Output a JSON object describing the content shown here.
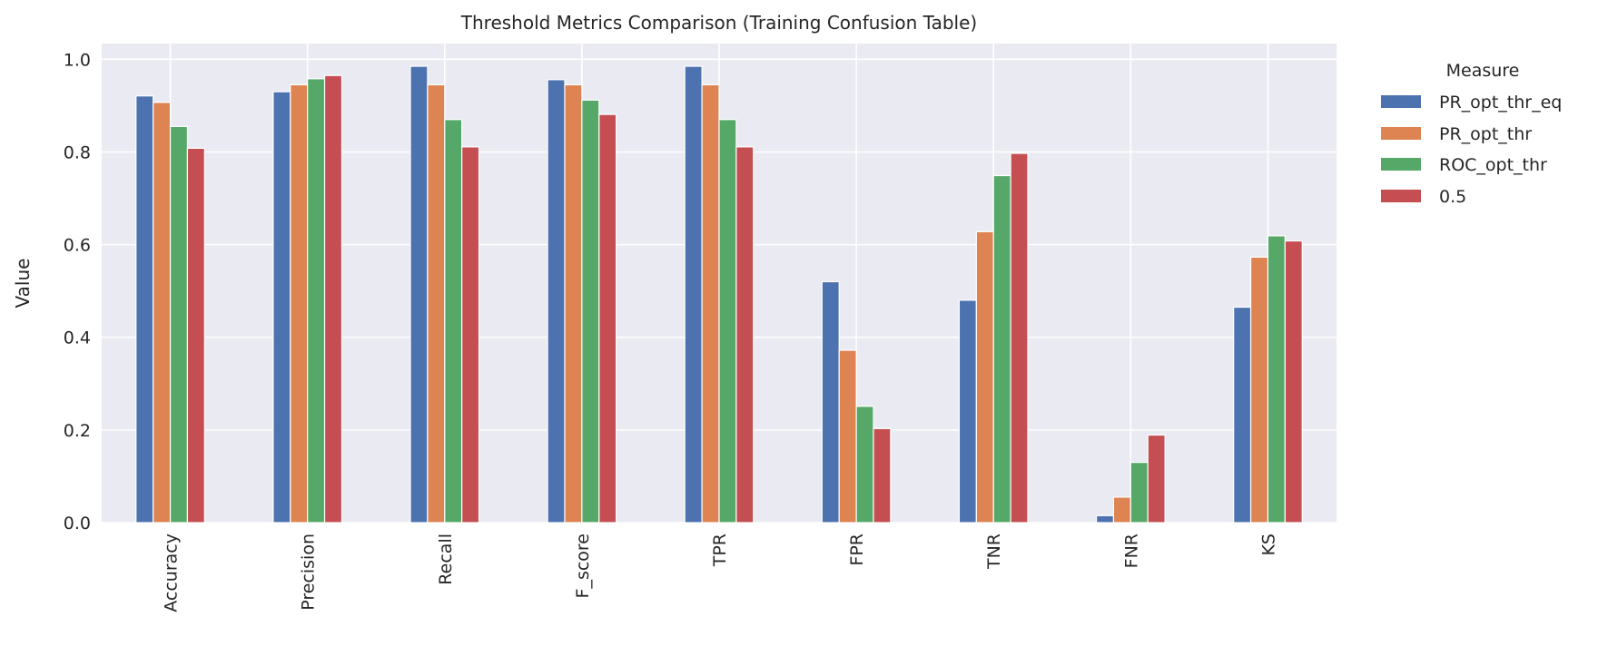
{
  "chart_data": {
    "type": "bar",
    "title": "Threshold Metrics Comparison (Training Confusion Table)",
    "xlabel": "",
    "ylabel": "Value",
    "ylim": [
      0,
      1.034
    ],
    "yticks": [
      "0.0",
      "0.2",
      "0.4",
      "0.6",
      "0.8",
      "1.0"
    ],
    "grid": true,
    "background": "#eaeaf2",
    "legend": {
      "title": "Measure",
      "placement": "outside-right"
    },
    "categories": [
      "Accuracy",
      "Precision",
      "Recall",
      "F_score",
      "TPR",
      "FPR",
      "TNR",
      "FNR",
      "KS"
    ],
    "series": [
      {
        "name": "PR_opt_thr_eq",
        "color": "#4c72b0",
        "values": [
          0.921,
          0.93,
          0.985,
          0.956,
          0.985,
          0.52,
          0.48,
          0.015,
          0.465
        ]
      },
      {
        "name": "PR_opt_thr",
        "color": "#dd8452",
        "values": [
          0.907,
          0.945,
          0.945,
          0.945,
          0.945,
          0.372,
          0.628,
          0.055,
          0.573
        ]
      },
      {
        "name": "ROC_opt_thr",
        "color": "#55a868",
        "values": [
          0.855,
          0.958,
          0.87,
          0.912,
          0.87,
          0.251,
          0.749,
          0.13,
          0.619
        ]
      },
      {
        "name": "0.5",
        "color": "#c44e52",
        "values": [
          0.808,
          0.965,
          0.811,
          0.881,
          0.811,
          0.203,
          0.797,
          0.189,
          0.608
        ]
      }
    ]
  }
}
